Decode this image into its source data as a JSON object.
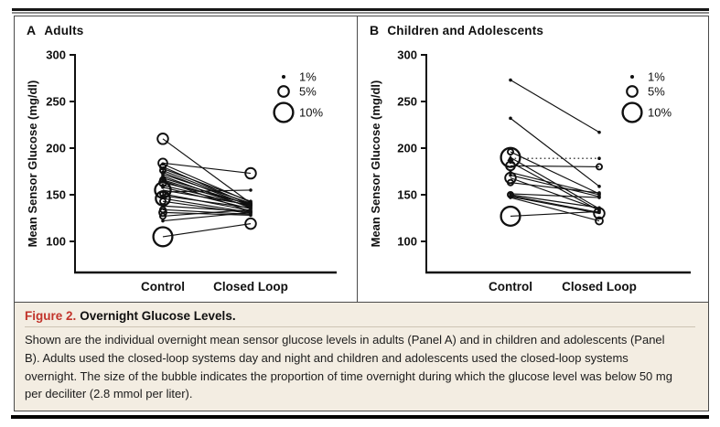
{
  "caption": {
    "label": "Figure 2.",
    "title": "Overnight Glucose Levels.",
    "body": "Shown are the individual overnight mean sensor glucose levels in adults (Panel A) and in children and adolescents (Panel B). Adults used the closed-loop systems day and night and children and adolescents used the closed-loop systems overnight. The size of the bubble indicates the proportion of time overnight during which the glucose level was below 50 mg per deciliter (2.8 mmol per liter)."
  },
  "colors": {
    "ink": "#101010",
    "figure_number_red": "#c2342b",
    "caption_background": "#f3ede2",
    "box_border": "#4a4a4a"
  },
  "chart_data": [
    {
      "type": "scatter",
      "panel_letter": "A",
      "title": "Adults",
      "ylabel": "Mean Sensor Glucose (mg/dl)",
      "yticks": [
        300,
        250,
        200,
        150,
        100
      ],
      "ylim": [
        75,
        300
      ],
      "categories": [
        "Control",
        "Closed Loop"
      ],
      "legend": {
        "position": "top-right",
        "note": "bubble size = % of overnight time below 50 mg/dl",
        "entries": [
          {
            "label": "1%",
            "pct": 1
          },
          {
            "label": "5%",
            "pct": 5
          },
          {
            "label": "10%",
            "pct": 10
          }
        ]
      },
      "pair_keys": [
        "control",
        "closed_loop",
        "control_bubble_pct",
        "closed_loop_bubble_pct",
        "dotted_line"
      ],
      "pairs": [
        [
          210,
          141,
          5,
          1
        ],
        [
          184,
          173,
          4,
          5
        ],
        [
          183,
          142,
          1,
          1
        ],
        [
          180,
          139,
          2,
          1
        ],
        [
          178,
          143,
          1,
          1
        ],
        [
          176,
          140,
          2,
          1
        ],
        [
          174,
          138,
          1,
          1
        ],
        [
          172,
          141,
          1,
          1
        ],
        [
          170,
          136,
          1,
          1
        ],
        [
          168,
          139,
          1,
          1
        ],
        [
          166,
          137,
          2,
          1
        ],
        [
          165,
          132,
          1,
          1
        ],
        [
          163,
          140,
          3,
          1
        ],
        [
          160,
          138,
          1,
          1
        ],
        [
          158,
          135,
          1,
          1
        ],
        [
          155,
          139,
          8,
          1
        ],
        [
          153,
          155,
          1,
          1
        ],
        [
          151,
          133,
          2,
          1
        ],
        [
          149,
          136,
          1,
          1
        ],
        [
          146,
          131,
          7,
          1
        ],
        [
          143,
          130,
          2,
          1
        ],
        [
          138,
          132,
          1,
          1
        ],
        [
          134,
          129,
          2,
          1
        ],
        [
          131,
          128,
          3,
          1
        ],
        [
          127,
          134,
          2,
          1
        ],
        [
          122,
          131,
          1,
          1
        ],
        [
          105,
          119,
          10,
          5
        ]
      ]
    },
    {
      "type": "scatter",
      "panel_letter": "B",
      "title": "Children and Adolescents",
      "ylabel": "Mean Sensor Glucose (mg/dl)",
      "yticks": [
        300,
        250,
        200,
        150,
        100
      ],
      "ylim": [
        75,
        300
      ],
      "categories": [
        "Control",
        "Closed Loop"
      ],
      "legend": {
        "position": "top-right",
        "note": "bubble size = % of overnight time below 50 mg/dl",
        "entries": [
          {
            "label": "1%",
            "pct": 1
          },
          {
            "label": "5%",
            "pct": 5
          },
          {
            "label": "10%",
            "pct": 10
          }
        ]
      },
      "pair_keys": [
        "control",
        "closed_loop",
        "control_bubble_pct",
        "closed_loop_bubble_pct",
        "dotted_line"
      ],
      "pairs": [
        [
          273,
          217,
          1,
          1
        ],
        [
          232,
          159,
          1,
          1
        ],
        [
          196,
          151,
          2,
          1
        ],
        [
          190,
          135,
          10,
          1
        ],
        [
          189,
          189,
          1,
          1,
          1
        ],
        [
          185,
          133,
          1,
          1
        ],
        [
          181,
          180,
          4,
          2
        ],
        [
          174,
          150,
          1,
          1
        ],
        [
          171,
          148,
          1,
          1
        ],
        [
          168,
          134,
          5,
          1
        ],
        [
          163,
          152,
          2,
          1
        ],
        [
          151,
          147,
          1,
          1
        ],
        [
          150,
          136,
          2,
          1
        ],
        [
          149,
          131,
          1,
          1
        ],
        [
          148,
          130,
          1,
          5
        ],
        [
          147,
          122,
          1,
          3
        ],
        [
          127,
          132,
          10,
          1
        ]
      ]
    }
  ]
}
